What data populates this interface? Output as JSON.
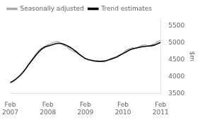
{
  "chart_data": {
    "type": "line",
    "x": [
      0,
      1,
      2,
      3,
      4,
      5,
      6,
      7,
      8,
      9,
      10,
      11,
      12,
      13,
      14,
      15,
      16,
      17,
      18,
      19,
      20,
      21,
      22,
      23,
      24,
      25,
      26,
      27,
      28,
      29,
      30,
      31,
      32,
      33,
      34,
      35,
      36,
      37,
      38,
      39,
      40,
      41,
      42,
      43,
      44,
      45,
      46,
      47,
      48
    ],
    "series": [
      {
        "name": "Seasonally adjusted",
        "color": "#aaaaaa",
        "values": [
          3820,
          3860,
          3930,
          4010,
          4110,
          4230,
          4380,
          4510,
          4640,
          4760,
          4840,
          4890,
          4940,
          4980,
          5020,
          5040,
          5000,
          4930,
          4880,
          4810,
          4750,
          4710,
          4670,
          4600,
          4530,
          4490,
          4470,
          4450,
          4470,
          4450,
          4430,
          4480,
          4530,
          4560,
          4590,
          4650,
          4690,
          4780,
          4820,
          4850,
          4830,
          4880,
          4920,
          4940,
          4900,
          4930,
          4970,
          5030,
          5080
        ]
      },
      {
        "name": "Trend estimates",
        "color": "#000000",
        "values": [
          3820,
          3870,
          3940,
          4020,
          4120,
          4240,
          4370,
          4490,
          4610,
          4720,
          4810,
          4870,
          4900,
          4930,
          4960,
          4980,
          4980,
          4960,
          4920,
          4870,
          4810,
          4740,
          4660,
          4590,
          4530,
          4500,
          4480,
          4460,
          4450,
          4450,
          4460,
          4480,
          4510,
          4540,
          4580,
          4630,
          4680,
          4730,
          4780,
          4820,
          4840,
          4860,
          4880,
          4890,
          4900,
          4910,
          4930,
          4970,
          5010
        ]
      }
    ],
    "xlim": [
      0,
      48
    ],
    "xticks": [
      {
        "value": 0,
        "label": "Feb\n2007"
      },
      {
        "value": 12,
        "label": "Feb\n2008"
      },
      {
        "value": 24,
        "label": "Feb\n2009"
      },
      {
        "value": 36,
        "label": "Feb\n2010"
      },
      {
        "value": 48,
        "label": "Feb\n2011"
      }
    ],
    "ylim": [
      3500,
      5700
    ],
    "yticks": [
      3500,
      4000,
      4500,
      5000,
      5500
    ],
    "ylabel": "$m",
    "grid": false,
    "legend": "upper left"
  }
}
